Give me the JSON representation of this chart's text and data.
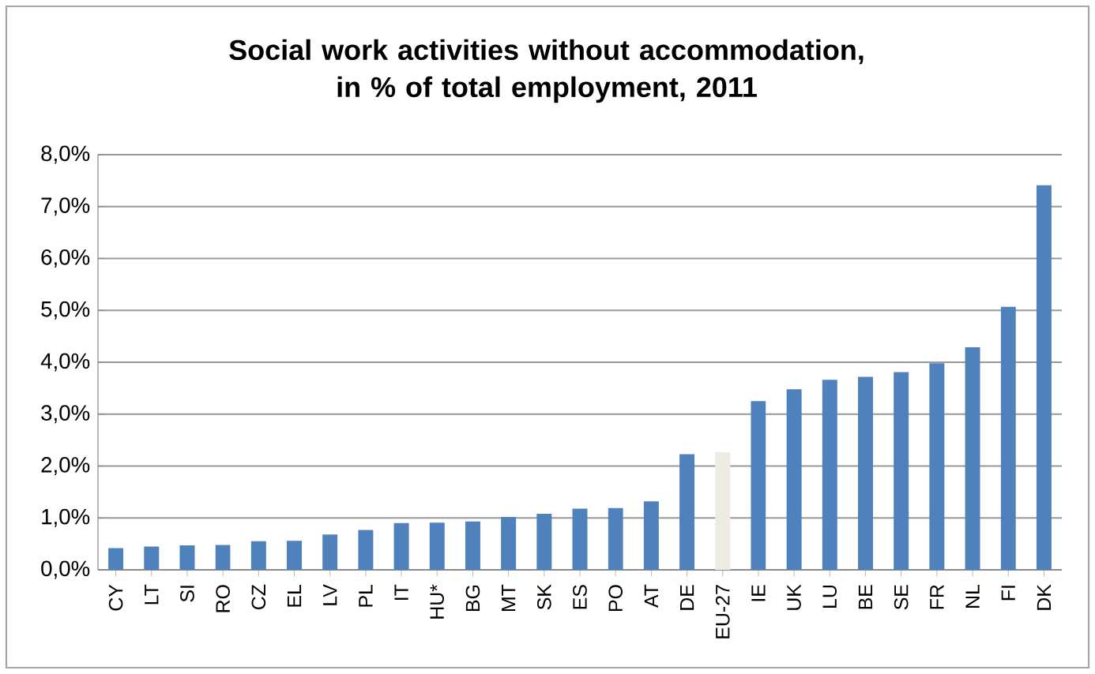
{
  "chart_data": {
    "type": "bar",
    "title": "Social work activities without accommodation, in % of total employment, 2011",
    "categories": [
      "CY",
      "LT",
      "SI",
      "RO",
      "CZ",
      "EL",
      "LV",
      "PL",
      "IT",
      "HU*",
      "BG",
      "MT",
      "SK",
      "ES",
      "PO",
      "AT",
      "DE",
      "EU-27",
      "IE",
      "UK",
      "LU",
      "BE",
      "SE",
      "FR",
      "NL",
      "FI",
      "DK"
    ],
    "values": [
      0.42,
      0.45,
      0.47,
      0.48,
      0.55,
      0.56,
      0.68,
      0.77,
      0.9,
      0.91,
      0.93,
      1.02,
      1.08,
      1.18,
      1.19,
      1.32,
      2.23,
      2.27,
      3.25,
      3.48,
      3.66,
      3.72,
      3.81,
      3.98,
      4.29,
      5.07,
      7.41
    ],
    "colors": [
      "#4f81bd",
      "#4f81bd",
      "#4f81bd",
      "#4f81bd",
      "#4f81bd",
      "#4f81bd",
      "#4f81bd",
      "#4f81bd",
      "#4f81bd",
      "#4f81bd",
      "#4f81bd",
      "#4f81bd",
      "#4f81bd",
      "#4f81bd",
      "#4f81bd",
      "#4f81bd",
      "#4f81bd",
      "#eeece1",
      "#4f81bd",
      "#4f81bd",
      "#4f81bd",
      "#4f81bd",
      "#4f81bd",
      "#4f81bd",
      "#4f81bd",
      "#4f81bd",
      "#4f81bd"
    ],
    "ylim": [
      0,
      8
    ],
    "yticks": [
      {
        "value": 0,
        "label": "0,0%"
      },
      {
        "value": 1,
        "label": "1,0%"
      },
      {
        "value": 2,
        "label": "2,0%"
      },
      {
        "value": 3,
        "label": "3,0%"
      },
      {
        "value": 4,
        "label": "4,0%"
      },
      {
        "value": 5,
        "label": "5,0%"
      },
      {
        "value": 6,
        "label": "6,0%"
      },
      {
        "value": 7,
        "label": "7,0%"
      },
      {
        "value": 8,
        "label": "8,0%"
      }
    ],
    "grid": "y"
  }
}
